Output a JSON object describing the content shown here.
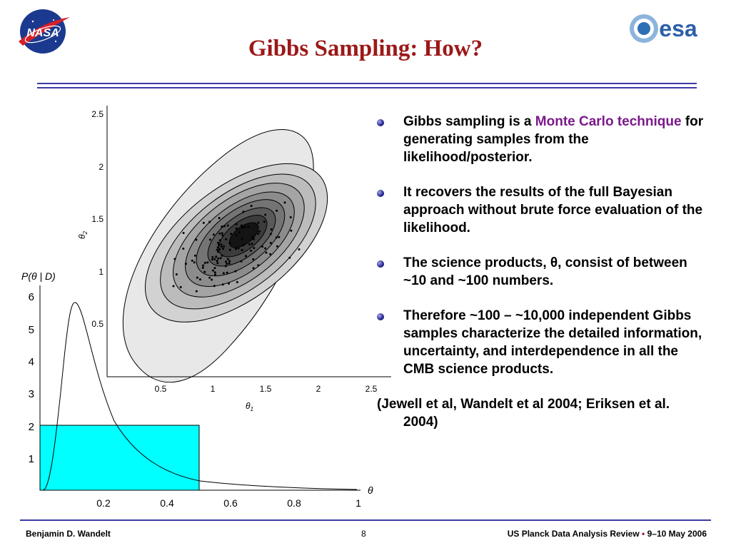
{
  "slide": {
    "title": "Gibbs Sampling: How?",
    "logos": {
      "left": "NASA",
      "right": "esa"
    }
  },
  "figure": {
    "posterior": {
      "ylabel_main": "P(",
      "ylabel_theta": "θ",
      "ylabel_rest": " | D)",
      "xlabel": "θ",
      "yticks": [
        "1",
        "2",
        "3",
        "4",
        "5",
        "6"
      ],
      "xticks": [
        "0.2",
        "0.4",
        "0.6",
        "0.8",
        "1"
      ],
      "box_color": "#00ffff"
    },
    "contour": {
      "xlabel_main": "θ",
      "xlabel_sub": "1",
      "ylabel_main": "θ",
      "ylabel_sub": "2",
      "xticks": [
        "0.5",
        "1",
        "1.5",
        "2",
        "2.5"
      ],
      "yticks": [
        "0.5",
        "1",
        "1.5",
        "2",
        "2.5"
      ]
    }
  },
  "bullets": {
    "b1_pre": "Gibbs sampling is a ",
    "b1_hl": "Monte Carlo technique",
    "b1_post": " for generating samples from the likelihood/posterior.",
    "b2": "It recovers the results of the full Bayesian approach without brute force evaluation of the likelihood.",
    "b3": "The science products, θ, consist of between ~10 and ~100 numbers.",
    "b4": "Therefore ~100 – ~10,000 independent Gibbs samples characterize the detailed information, uncertainty, and interdependence in all the CMB science products.",
    "reference": "(Jewell et al, Wandelt et al 2004; Eriksen et al. 2004)",
    "highlight_color": "#7a1a8a"
  },
  "footer": {
    "author": "Benjamin D. Wandelt",
    "page": "8",
    "event": "US Planck Data Analysis Review",
    "separator": "•",
    "dates": "9–10 May 2006"
  }
}
